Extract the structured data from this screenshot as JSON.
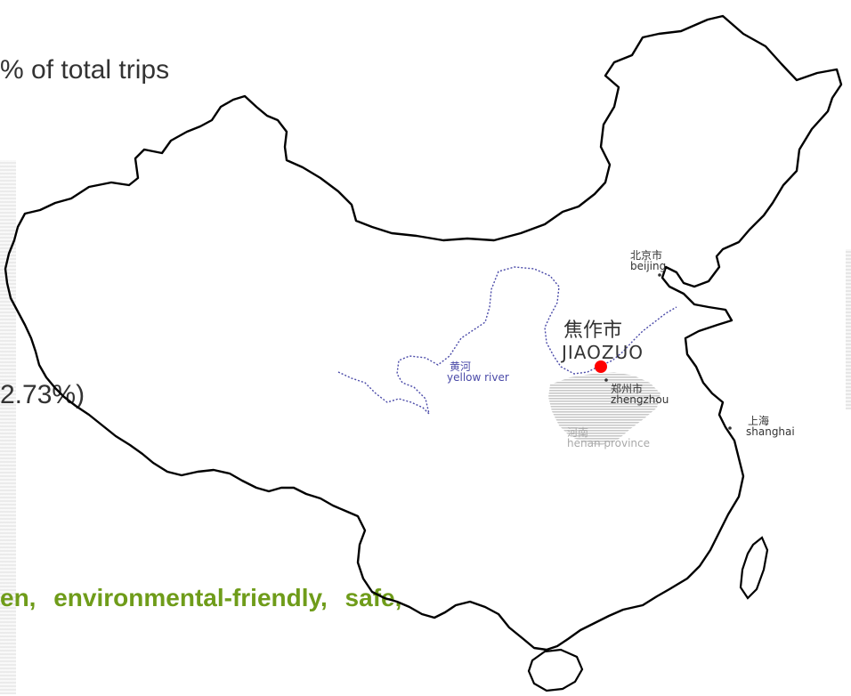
{
  "slide": {
    "top_text": "% of total trips",
    "mid_text": "2.73%)",
    "bottom_text": "en, environmental-friendly, safe,"
  },
  "map": {
    "labels": {
      "beijing_cn": "北京市",
      "beijing_en": "beijing",
      "jiaozuo_cn": "焦作市",
      "jiaozuo_en": "JIAOZUO",
      "zhengzhou_cn": "郑州市",
      "zhengzhou_en": "zhengzhou",
      "shanghai_cn": "上海",
      "shanghai_en": "shanghai",
      "henan_cn": "河南",
      "henan_en": "henan province",
      "river_cn": "黄河",
      "river_en": "yellow river"
    },
    "colors": {
      "border": "#000000",
      "river": "#4a4aa8",
      "province_fill": "#c8c8c8",
      "province_label": "#a9a9a9",
      "city_marker": "#ff0000",
      "text": "#333333",
      "highlight_text": "#6f9c1a"
    }
  }
}
